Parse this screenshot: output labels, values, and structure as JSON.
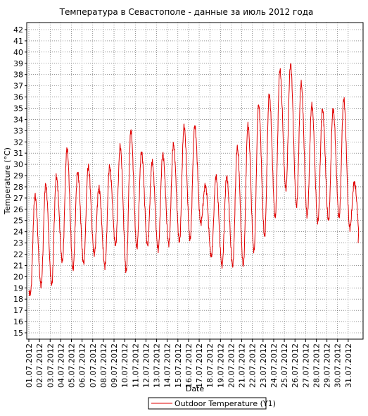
{
  "chart_data": {
    "type": "line",
    "title": "Температура в Севастополе - данные за июль 2012 года",
    "xlabel": "Date",
    "ylabel": "Temperature (°C)",
    "ylim": [
      15,
      42
    ],
    "yticks": [
      15,
      16,
      17,
      18,
      19,
      20,
      21,
      22,
      23,
      24,
      25,
      26,
      27,
      28,
      29,
      30,
      31,
      32,
      33,
      34,
      35,
      36,
      37,
      38,
      39,
      40,
      41,
      42
    ],
    "xticks": [
      "01.07.2012",
      "02.07.2012",
      "03.07.2012",
      "04.07.2012",
      "05.07.2012",
      "06.07.2012",
      "07.07.2012",
      "08.07.2012",
      "09.07.2012",
      "10.07.2012",
      "11.07.2012",
      "12.07.2012",
      "13.07.2012",
      "14.07.2012",
      "15.07.2012",
      "16.07.2012",
      "17.07.2012",
      "18.07.2012",
      "19.07.2012",
      "20.07.2012",
      "21.07.2012",
      "22.07.2012",
      "23.07.2012",
      "24.07.2012",
      "25.07.2012",
      "26.07.2012",
      "27.07.2012",
      "28.07.2012",
      "29.07.2012",
      "30.07.2012",
      "31.07.2012"
    ],
    "grid": true,
    "legend_position": "bottom",
    "series": [
      {
        "name": "Outdoor Temperature (Y1)",
        "color": "#e00000",
        "daily_min": [
          18.5,
          19.2,
          19.3,
          21.4,
          20.7,
          21.2,
          22.0,
          20.9,
          22.8,
          20.5,
          22.6,
          22.8,
          22.4,
          22.9,
          23.1,
          23.3,
          24.8,
          21.8,
          21.0,
          21.0,
          21.0,
          22.3,
          23.6,
          25.3,
          27.8,
          26.3,
          25.4,
          24.9,
          25.0,
          25.3,
          24.3
        ],
        "daily_max": [
          27.2,
          28.2,
          28.9,
          31.4,
          29.3,
          29.8,
          27.9,
          29.8,
          31.6,
          33.0,
          31.1,
          30.2,
          30.9,
          31.8,
          33.4,
          33.4,
          28.1,
          28.9,
          28.9,
          31.5,
          33.5,
          35.3,
          36.2,
          38.4,
          38.9,
          37.2,
          35.3,
          34.9,
          34.9,
          35.8,
          28.4
        ],
        "end_value": 23.0
      }
    ]
  }
}
